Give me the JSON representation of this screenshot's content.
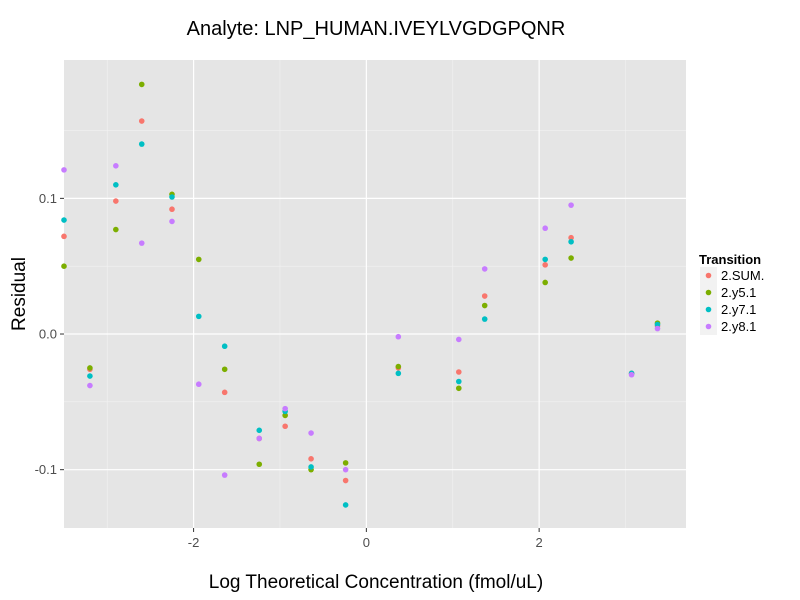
{
  "chart_data": {
    "type": "scatter",
    "title": "Analyte: LNP_HUMAN.IVEYLVGDGPQNR",
    "xlabel": "Log Theoretical Concentration (fmol/uL)",
    "ylabel": "Residual",
    "xlim": [
      -3.5,
      3.7
    ],
    "ylim": [
      -0.143,
      0.202
    ],
    "x_ticks": [
      -2,
      0,
      2
    ],
    "x_tick_labels": [
      "-2",
      "0",
      "2"
    ],
    "y_ticks": [
      -0.1,
      0.0,
      0.1
    ],
    "y_tick_labels": [
      "-0.1",
      "0.0",
      "0.1"
    ],
    "grid": true,
    "legend": {
      "title": "Transition",
      "position": "right"
    },
    "series": [
      {
        "name": "2.SUM.",
        "color": "#F8766D",
        "points": [
          [
            -3.5,
            0.072
          ],
          [
            -3.2,
            -0.026
          ],
          [
            -2.9,
            0.098
          ],
          [
            -2.6,
            0.157
          ],
          [
            -2.25,
            0.092
          ],
          [
            -1.64,
            -0.043
          ],
          [
            -1.24,
            -0.077
          ],
          [
            -0.94,
            -0.068
          ],
          [
            -0.64,
            -0.092
          ],
          [
            -0.24,
            -0.108
          ],
          [
            0.37,
            -0.025
          ],
          [
            1.07,
            -0.028
          ],
          [
            1.37,
            0.028
          ],
          [
            2.07,
            0.051
          ],
          [
            2.37,
            0.071
          ],
          [
            3.07,
            -0.029
          ],
          [
            3.37,
            0.006
          ]
        ]
      },
      {
        "name": "2.y5.1",
        "color": "#7CAE00",
        "points": [
          [
            -3.5,
            0.05
          ],
          [
            -3.2,
            -0.025
          ],
          [
            -2.9,
            0.077
          ],
          [
            -2.6,
            0.184
          ],
          [
            -2.25,
            0.103
          ],
          [
            -1.94,
            0.055
          ],
          [
            -1.64,
            -0.026
          ],
          [
            -1.24,
            -0.096
          ],
          [
            -0.94,
            -0.06
          ],
          [
            -0.64,
            -0.1
          ],
          [
            -0.24,
            -0.095
          ],
          [
            0.37,
            -0.024
          ],
          [
            1.07,
            -0.04
          ],
          [
            1.37,
            0.021
          ],
          [
            2.07,
            0.038
          ],
          [
            2.37,
            0.056
          ],
          [
            3.37,
            0.008
          ]
        ]
      },
      {
        "name": "2.y7.1",
        "color": "#00BFC4",
        "points": [
          [
            -3.5,
            0.084
          ],
          [
            -3.2,
            -0.031
          ],
          [
            -2.9,
            0.11
          ],
          [
            -2.6,
            0.14
          ],
          [
            -2.25,
            0.101
          ],
          [
            -1.94,
            0.013
          ],
          [
            -1.64,
            -0.009
          ],
          [
            -1.24,
            -0.071
          ],
          [
            -0.94,
            -0.057
          ],
          [
            -0.64,
            -0.098
          ],
          [
            -0.24,
            -0.126
          ],
          [
            0.37,
            -0.029
          ],
          [
            1.07,
            -0.035
          ],
          [
            1.37,
            0.011
          ],
          [
            2.07,
            0.055
          ],
          [
            2.37,
            0.068
          ],
          [
            3.07,
            -0.029
          ],
          [
            3.37,
            0.007
          ]
        ]
      },
      {
        "name": "2.y8.1",
        "color": "#C77CFF",
        "points": [
          [
            -3.5,
            0.121
          ],
          [
            -3.2,
            -0.038
          ],
          [
            -2.9,
            0.124
          ],
          [
            -2.6,
            0.067
          ],
          [
            -2.25,
            0.083
          ],
          [
            -1.94,
            -0.037
          ],
          [
            -1.64,
            -0.104
          ],
          [
            -1.24,
            -0.077
          ],
          [
            -0.94,
            -0.055
          ],
          [
            -0.64,
            -0.073
          ],
          [
            -0.24,
            -0.1
          ],
          [
            0.37,
            -0.002
          ],
          [
            1.07,
            -0.004
          ],
          [
            1.37,
            0.048
          ],
          [
            2.07,
            0.078
          ],
          [
            2.37,
            0.095
          ],
          [
            3.07,
            -0.03
          ],
          [
            3.37,
            0.004
          ]
        ]
      }
    ]
  }
}
